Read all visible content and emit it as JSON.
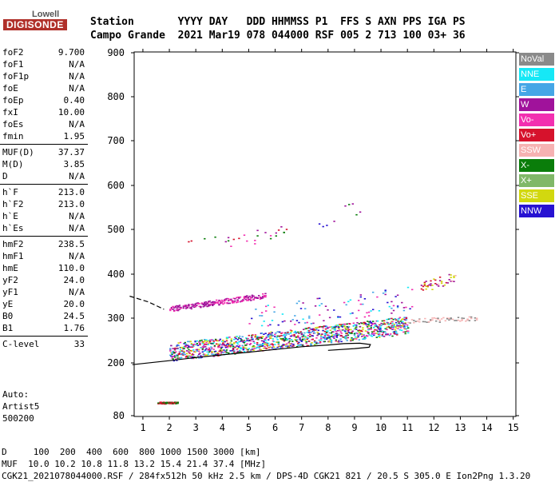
{
  "logo": {
    "top": "Lowell",
    "bottom": "DIGISONDE"
  },
  "header": {
    "line1": "Station       YYYY DAY   DDD HHMMSS P1  FFS S AXN PPS IGA PS",
    "line2": "Campo Grande  2021 Mar19 078 044000 RSF 005 2 713 100 03+ 36"
  },
  "parameters": [
    {
      "label": "foF2",
      "value": "9.700"
    },
    {
      "label": "foF1",
      "value": "N/A"
    },
    {
      "label": "foF1p",
      "value": "N/A"
    },
    {
      "label": "foE",
      "value": "N/A"
    },
    {
      "label": "foEp",
      "value": "0.40"
    },
    {
      "label": "fxI",
      "value": "10.00"
    },
    {
      "label": "foEs",
      "value": "N/A"
    },
    {
      "label": "fmin",
      "value": "1.95"
    },
    {
      "label": "MUF(D)",
      "value": "37.37"
    },
    {
      "label": "M(D)",
      "value": "3.85"
    },
    {
      "label": "D",
      "value": "N/A"
    },
    {
      "label": "h`F",
      "value": "213.0"
    },
    {
      "label": "h`F2",
      "value": "213.0"
    },
    {
      "label": "h`E",
      "value": "N/A"
    },
    {
      "label": "h`Es",
      "value": "N/A"
    },
    {
      "label": "hmF2",
      "value": "238.5"
    },
    {
      "label": "hmF1",
      "value": "N/A"
    },
    {
      "label": "hmE",
      "value": "110.0"
    },
    {
      "label": "yF2",
      "value": "24.0"
    },
    {
      "label": "yF1",
      "value": "N/A"
    },
    {
      "label": "yE",
      "value": "20.0"
    },
    {
      "label": "B0",
      "value": "24.5"
    },
    {
      "label": "B1",
      "value": "1.76"
    },
    {
      "label": "C-level",
      "value": "33"
    }
  ],
  "autoscaling": {
    "line1": "Auto:",
    "line2": "Artist5",
    "line3": "500200"
  },
  "footer": {
    "line1": "D     100  200  400  600  800 1000 1500 3000 [km]",
    "line2": "MUF  10.0 10.2 10.8 11.8 13.2 15.4 21.4 37.4 [MHz]",
    "line3": "CGK21_2021078044000.RSF / 284fx512h 50 kHz 2.5 km / DPS-4D CGK21 821 / 20.5 S 305.0 E Ion2Png 1.3.20"
  },
  "legend": [
    {
      "label": "NoVal",
      "color": "#8a8a8a"
    },
    {
      "label": "NNE",
      "color": "#16e8f6"
    },
    {
      "label": "E",
      "color": "#45a6e6"
    },
    {
      "label": "W",
      "color": "#a0129b"
    },
    {
      "label": "Vo-",
      "color": "#f22fb0"
    },
    {
      "label": "Vo+",
      "color": "#d6122c"
    },
    {
      "label": "SSW",
      "color": "#f6b2b2"
    },
    {
      "label": "X-",
      "color": "#0a7d0a"
    },
    {
      "label": "X+",
      "color": "#80b868"
    },
    {
      "label": "SSE",
      "color": "#d2d80f"
    },
    {
      "label": "NNW",
      "color": "#2712d2"
    }
  ],
  "chart_data": {
    "type": "scatter",
    "title": "",
    "xlabel": "",
    "ylabel": "",
    "xlim": [
      0.5,
      15
    ],
    "ylim": [
      80,
      900
    ],
    "x_ticks": [
      1,
      2,
      3,
      4,
      5,
      6,
      7,
      8,
      9,
      10,
      11,
      12,
      13,
      14,
      15
    ],
    "y_ticks": [
      80,
      200,
      300,
      400,
      500,
      600,
      700,
      800,
      900
    ],
    "grid": false,
    "legend_position": "right",
    "clusters": [
      {
        "name": "F-trace",
        "x_start": 2.0,
        "x_end": 11.0,
        "h_start": 225,
        "h_end": 285,
        "spread": 20,
        "density": 1.0,
        "colors": [
          "#d6122c",
          "#f22fb0",
          "#2712d2",
          "#a0129b",
          "#0a7d0a",
          "#d2d80f",
          "#45a6e6",
          "#16e8f6"
        ]
      },
      {
        "name": "F-upper-spread",
        "x_start": 5.0,
        "x_end": 11.2,
        "h_start": 300,
        "h_end": 345,
        "spread": 28,
        "density": 0.45,
        "colors": [
          "#45a6e6",
          "#16e8f6",
          "#2712d2",
          "#f22fb0",
          "#a0129b"
        ]
      },
      {
        "name": "oblique-330",
        "x_start": 2.0,
        "x_end": 5.6,
        "h_start": 322,
        "h_end": 352,
        "spread": 6,
        "density": 0.7,
        "colors": [
          "#a0129b",
          "#f22fb0"
        ]
      },
      {
        "name": "multihop-460",
        "x_start": 2.6,
        "x_end": 6.4,
        "h_start": 460,
        "h_end": 495,
        "spread": 16,
        "density": 0.35,
        "colors": [
          "#a0129b",
          "#f22fb0",
          "#0a7d0a",
          "#d6122c"
        ]
      },
      {
        "name": "multihop-530",
        "x_start": 7.5,
        "x_end": 9.5,
        "h_start": 515,
        "h_end": 560,
        "spread": 15,
        "density": 0.25,
        "colors": [
          "#a0129b",
          "#2712d2",
          "#0a7d0a"
        ]
      },
      {
        "name": "NE-cluster",
        "x_start": 11.5,
        "x_end": 12.8,
        "h_start": 370,
        "h_end": 395,
        "spread": 12,
        "density": 0.6,
        "colors": [
          "#d2d80f",
          "#d6122c",
          "#a0129b",
          "#f6b2b2"
        ]
      },
      {
        "name": "SSW-tail",
        "x_start": 11.0,
        "x_end": 13.6,
        "h_start": 295,
        "h_end": 300,
        "spread": 5,
        "density": 0.5,
        "colors": [
          "#f6b2b2",
          "#8a8a8a"
        ]
      },
      {
        "name": "E-layer",
        "x_start": 1.55,
        "x_end": 2.3,
        "h_start": 110,
        "h_end": 110,
        "spread": 2,
        "density": 1.0,
        "colors": [
          "#d6122c",
          "#0a7d0a"
        ]
      }
    ],
    "profile_curve": [
      [
        0.6,
        196
      ],
      [
        2,
        205
      ],
      [
        3,
        212
      ],
      [
        4,
        218
      ],
      [
        5,
        224
      ],
      [
        6,
        230
      ],
      [
        7,
        236
      ],
      [
        8,
        240
      ],
      [
        8.6,
        243
      ],
      [
        9.2,
        244
      ],
      [
        9.6,
        241
      ],
      [
        9.55,
        235
      ],
      [
        9.0,
        232
      ],
      [
        8.0,
        228
      ]
    ],
    "dashed_curve": [
      [
        0.5,
        350
      ],
      [
        1.2,
        337
      ],
      [
        1.8,
        320
      ]
    ]
  }
}
